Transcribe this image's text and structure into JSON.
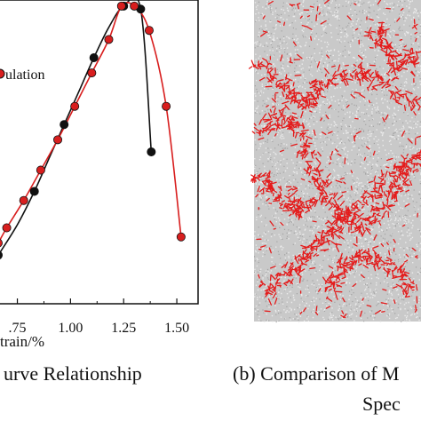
{
  "captions": {
    "left": "urve Relationship",
    "right_line1": "(b) Comparison of M",
    "right_line2": "Spec"
  },
  "chart_data": {
    "type": "line",
    "xlabel": "train/%",
    "ylabel": "",
    "xlim": [
      0.66,
      1.6
    ],
    "ylim": [
      0,
      1.0
    ],
    "x_ticks": [
      0.75,
      1.0,
      1.25,
      1.5
    ],
    "x_tick_labels": [
      ".75",
      "1.00",
      "1.25",
      "1.50"
    ],
    "legend": [
      "ulation"
    ],
    "series": [
      {
        "name": "",
        "color": "#111111",
        "x": [
          0.66,
          0.75,
          0.83,
          0.9,
          0.97,
          1.04,
          1.11,
          1.18,
          1.25,
          1.33,
          1.38
        ],
        "y": [
          0.16,
          0.26,
          0.37,
          0.48,
          0.59,
          0.7,
          0.81,
          0.91,
          0.98,
          0.97,
          0.5
        ],
        "markers": [
          0.66,
          0.83,
          0.97,
          1.11,
          1.25,
          1.33,
          1.38
        ]
      },
      {
        "name": "ulation",
        "color": "#d81e1e",
        "x": [
          0.66,
          0.7,
          0.78,
          0.86,
          0.94,
          1.02,
          1.1,
          1.18,
          1.24,
          1.3,
          1.37,
          1.45,
          1.52
        ],
        "y": [
          0.2,
          0.25,
          0.34,
          0.44,
          0.54,
          0.65,
          0.76,
          0.87,
          0.98,
          0.98,
          0.9,
          0.65,
          0.22
        ],
        "markers": [
          0.66,
          0.7,
          0.78,
          0.86,
          0.94,
          1.02,
          1.1,
          1.18,
          1.24,
          1.3,
          1.37,
          1.45,
          1.52
        ]
      }
    ]
  },
  "panel_b": {
    "background_color": "#c9c9c9",
    "crack_color": "#e41b1b"
  }
}
